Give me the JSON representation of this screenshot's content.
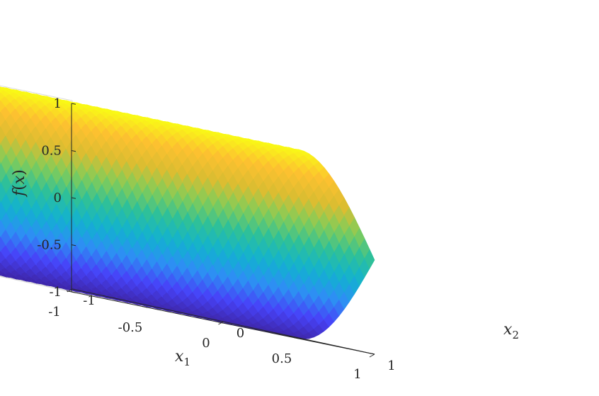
{
  "chart_data": {
    "type": "surface",
    "function": "f(x) = sin(pi * (x1 - x2))",
    "x1": {
      "label": "x",
      "subscript": "1",
      "range": [
        -1,
        1
      ],
      "ticks": [
        -1,
        -0.5,
        0,
        0.5,
        1
      ],
      "tick_labels": [
        "-1",
        "-0.5",
        "0",
        "0.5",
        "1"
      ]
    },
    "x2": {
      "label": "x",
      "subscript": "2",
      "range": [
        -1,
        1
      ],
      "ticks": [
        -1,
        0,
        1
      ],
      "tick_labels": [
        "-1",
        "0",
        "1"
      ]
    },
    "z": {
      "label": "f(x)",
      "label_base": "f",
      "label_open": "(",
      "label_var": "x",
      "label_close": ")",
      "range": [
        -1,
        1
      ],
      "ticks": [
        -1,
        -0.5,
        0,
        0.5,
        1
      ],
      "tick_labels": [
        "-1",
        "-0.5",
        "0",
        "0.5",
        "1"
      ]
    },
    "grid": true,
    "colormap": "parula",
    "colormap_stops": [
      "#3e26a8",
      "#4743f8",
      "#2d8ff3",
      "#12b1d0",
      "#2ec09a",
      "#81cc59",
      "#dcbd31",
      "#fdc130",
      "#f9fb15"
    ]
  }
}
